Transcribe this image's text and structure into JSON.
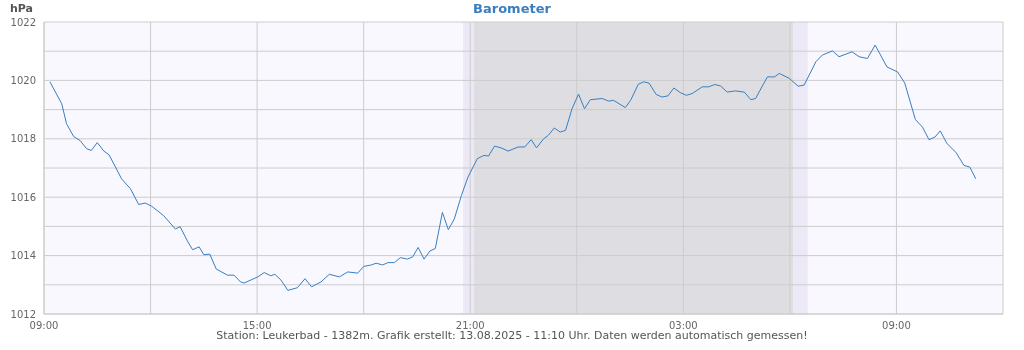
{
  "chart_data": {
    "type": "line",
    "title": "Barometer",
    "ylabel": "hPa",
    "annotations": [
      "Station: Leukerbad - 1382m. Grafik erstellt: 13.08.2025 - 11:10 Uhr. Daten werden automatisch gemessen!"
    ],
    "x": [
      "2025-08-12T09:10",
      "2025-08-12T09:30",
      "2025-08-12T09:38",
      "2025-08-12T09:50",
      "2025-08-12T10:01",
      "2025-08-12T10:12",
      "2025-08-12T10:20",
      "2025-08-12T10:30",
      "2025-08-12T10:41",
      "2025-08-12T10:50",
      "2025-08-12T11:11",
      "2025-08-12T11:26",
      "2025-08-12T11:40",
      "2025-08-12T11:51",
      "2025-08-12T12:02",
      "2025-08-12T12:22",
      "2025-08-12T12:42",
      "2025-08-12T12:50",
      "2025-08-12T13:02",
      "2025-08-12T13:11",
      "2025-08-12T13:22",
      "2025-08-12T13:30",
      "2025-08-12T13:40",
      "2025-08-12T13:51",
      "2025-08-12T14:10",
      "2025-08-12T14:21",
      "2025-08-12T14:32",
      "2025-08-12T14:38",
      "2025-08-12T15:01",
      "2025-08-12T15:12",
      "2025-08-12T15:23",
      "2025-08-12T15:30",
      "2025-08-12T15:40",
      "2025-08-12T15:52",
      "2025-08-12T16:08",
      "2025-08-12T16:21",
      "2025-08-12T16:32",
      "2025-08-12T16:48",
      "2025-08-12T17:02",
      "2025-08-12T17:19",
      "2025-08-12T17:33",
      "2025-08-12T17:50",
      "2025-08-12T18:00",
      "2025-08-12T18:13",
      "2025-08-12T18:21",
      "2025-08-12T18:32",
      "2025-08-12T18:41",
      "2025-08-12T18:52",
      "2025-08-12T19:02",
      "2025-08-12T19:14",
      "2025-08-12T19:23",
      "2025-08-12T19:32",
      "2025-08-12T19:42",
      "2025-08-12T19:52",
      "2025-08-12T20:01",
      "2025-08-12T20:13",
      "2025-08-12T20:23",
      "2025-08-12T20:33",
      "2025-08-12T20:45",
      "2025-08-12T20:56",
      "2025-08-12T21:12",
      "2025-08-12T21:23",
      "2025-08-12T21:31",
      "2025-08-12T21:41",
      "2025-08-12T21:52",
      "2025-08-12T22:04",
      "2025-08-12T22:21",
      "2025-08-12T22:32",
      "2025-08-12T22:43",
      "2025-08-12T22:52",
      "2025-08-12T23:04",
      "2025-08-12T23:12",
      "2025-08-12T23:22",
      "2025-08-12T23:32",
      "2025-08-12T23:41",
      "2025-08-12T23:52",
      "2025-08-13T00:03",
      "2025-08-13T00:13",
      "2025-08-13T00:23",
      "2025-08-13T00:43",
      "2025-08-13T00:54",
      "2025-08-13T01:02",
      "2025-08-13T01:22",
      "2025-08-13T01:31",
      "2025-08-13T01:44",
      "2025-08-13T01:53",
      "2025-08-13T02:02",
      "2025-08-13T02:14",
      "2025-08-13T02:24",
      "2025-08-13T02:34",
      "2025-08-13T02:44",
      "2025-08-13T02:55",
      "2025-08-13T03:05",
      "2025-08-13T03:15",
      "2025-08-13T03:32",
      "2025-08-13T03:43",
      "2025-08-13T03:53",
      "2025-08-13T04:03",
      "2025-08-13T04:14",
      "2025-08-13T04:28",
      "2025-08-13T04:43",
      "2025-08-13T04:54",
      "2025-08-13T05:02",
      "2025-08-13T05:22",
      "2025-08-13T05:34",
      "2025-08-13T05:42",
      "2025-08-13T05:59",
      "2025-08-13T06:14",
      "2025-08-13T06:24",
      "2025-08-13T06:44",
      "2025-08-13T06:55",
      "2025-08-13T07:12",
      "2025-08-13T07:23",
      "2025-08-13T07:45",
      "2025-08-13T07:57",
      "2025-08-13T08:11",
      "2025-08-13T08:24",
      "2025-08-13T08:44",
      "2025-08-13T09:02",
      "2025-08-13T09:14",
      "2025-08-13T09:32",
      "2025-08-13T09:44",
      "2025-08-13T09:55",
      "2025-08-13T10:05",
      "2025-08-13T10:14",
      "2025-08-13T10:25",
      "2025-08-13T10:41",
      "2025-08-13T10:54",
      "2025-08-13T11:04",
      "2025-08-13T11:14"
    ],
    "series": [
      {
        "color": "#3a7ebf",
        "values": [
          1019.95,
          1019.2,
          1018.52,
          1018.08,
          1017.94,
          1017.66,
          1017.6,
          1017.87,
          1017.58,
          1017.45,
          1016.63,
          1016.29,
          1015.75,
          1015.8,
          1015.69,
          1015.37,
          1014.91,
          1014.99,
          1014.51,
          1014.2,
          1014.3,
          1014.03,
          1014.05,
          1013.54,
          1013.33,
          1013.33,
          1013.1,
          1013.06,
          1013.27,
          1013.42,
          1013.31,
          1013.36,
          1013.17,
          1012.81,
          1012.9,
          1013.21,
          1012.93,
          1013.1,
          1013.36,
          1013.27,
          1013.44,
          1013.4,
          1013.63,
          1013.68,
          1013.74,
          1013.68,
          1013.76,
          1013.76,
          1013.93,
          1013.88,
          1013.96,
          1014.28,
          1013.88,
          1014.16,
          1014.24,
          1015.48,
          1014.89,
          1015.25,
          1016.05,
          1016.68,
          1017.32,
          1017.43,
          1017.41,
          1017.75,
          1017.69,
          1017.58,
          1017.72,
          1017.72,
          1017.97,
          1017.69,
          1018.0,
          1018.12,
          1018.37,
          1018.23,
          1018.29,
          1019.03,
          1019.53,
          1019.03,
          1019.34,
          1019.38,
          1019.29,
          1019.32,
          1019.07,
          1019.32,
          1019.87,
          1019.95,
          1019.91,
          1019.52,
          1019.43,
          1019.47,
          1019.74,
          1019.58,
          1019.49,
          1019.55,
          1019.78,
          1019.78,
          1019.86,
          1019.81,
          1019.6,
          1019.64,
          1019.6,
          1019.34,
          1019.38,
          1020.12,
          1020.12,
          1020.24,
          1020.07,
          1019.8,
          1019.84,
          1020.64,
          1020.87,
          1021.01,
          1020.81,
          1020.98,
          1020.81,
          1020.75,
          1021.21,
          1020.46,
          1020.29,
          1019.91,
          1018.66,
          1018.4,
          1017.97,
          1018.06,
          1018.27,
          1017.85,
          1017.52,
          1017.09,
          1017.03,
          1016.63
        ]
      }
    ],
    "xlim": [
      "2025-08-12T09:00",
      "2025-08-13T12:00"
    ],
    "xticks": [
      {
        "value": "2025-08-12T09:00",
        "label": "09:00"
      },
      {
        "value": "2025-08-12T12:00",
        "label": null
      },
      {
        "value": "2025-08-12T15:00",
        "label": "15:00"
      },
      {
        "value": "2025-08-12T18:00",
        "label": null
      },
      {
        "value": "2025-08-12T21:00",
        "label": "21:00"
      },
      {
        "value": "2025-08-13T00:00",
        "label": null
      },
      {
        "value": "2025-08-13T03:00",
        "label": "03:00"
      },
      {
        "value": "2025-08-13T06:00",
        "label": null
      },
      {
        "value": "2025-08-13T09:00",
        "label": "09:00"
      },
      {
        "value": "2025-08-13T12:00",
        "label": null
      }
    ],
    "ylim": [
      1012,
      1022
    ],
    "yticks": [
      1012,
      {
        "value": 1013,
        "label": null
      },
      1014,
      {
        "value": 1015,
        "label": null
      },
      1016,
      {
        "value": 1017,
        "label": null
      },
      1018,
      {
        "value": 1019,
        "label": null
      },
      1020,
      {
        "value": 1021,
        "label": null
      },
      1022
    ],
    "bands": [
      {
        "axis": "x",
        "from": "2025-08-12T20:48",
        "to": "2025-08-12T21:06",
        "color": "#ece8f6"
      },
      {
        "axis": "x",
        "from": "2025-08-12T21:06",
        "to": "2025-08-13T06:06",
        "color": "#dedee2"
      },
      {
        "axis": "x",
        "from": "2025-08-13T06:06",
        "to": "2025-08-13T06:30",
        "color": "#ece8f6"
      }
    ],
    "grid": true
  }
}
